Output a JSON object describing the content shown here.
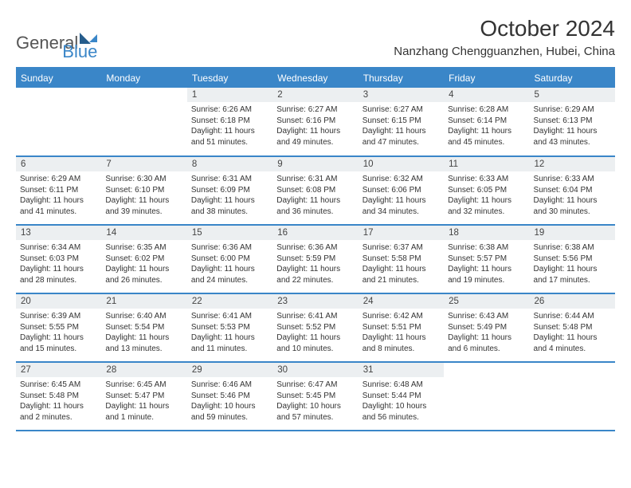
{
  "logo": {
    "part1": "General",
    "part2": "Blue"
  },
  "title": "October 2024",
  "location": "Nanzhang Chengguanzhen, Hubei, China",
  "header_bg": "#3a86c8",
  "header_text_color": "#ffffff",
  "daynum_bg": "#eceff1",
  "rule_color": "#3a86c8",
  "body_font_size": 10,
  "daynames": [
    "Sunday",
    "Monday",
    "Tuesday",
    "Wednesday",
    "Thursday",
    "Friday",
    "Saturday"
  ],
  "weeks": [
    [
      {
        "n": "",
        "sr": "",
        "ss": "",
        "dl": ""
      },
      {
        "n": "",
        "sr": "",
        "ss": "",
        "dl": ""
      },
      {
        "n": "1",
        "sr": "Sunrise: 6:26 AM",
        "ss": "Sunset: 6:18 PM",
        "dl": "Daylight: 11 hours and 51 minutes."
      },
      {
        "n": "2",
        "sr": "Sunrise: 6:27 AM",
        "ss": "Sunset: 6:16 PM",
        "dl": "Daylight: 11 hours and 49 minutes."
      },
      {
        "n": "3",
        "sr": "Sunrise: 6:27 AM",
        "ss": "Sunset: 6:15 PM",
        "dl": "Daylight: 11 hours and 47 minutes."
      },
      {
        "n": "4",
        "sr": "Sunrise: 6:28 AM",
        "ss": "Sunset: 6:14 PM",
        "dl": "Daylight: 11 hours and 45 minutes."
      },
      {
        "n": "5",
        "sr": "Sunrise: 6:29 AM",
        "ss": "Sunset: 6:13 PM",
        "dl": "Daylight: 11 hours and 43 minutes."
      }
    ],
    [
      {
        "n": "6",
        "sr": "Sunrise: 6:29 AM",
        "ss": "Sunset: 6:11 PM",
        "dl": "Daylight: 11 hours and 41 minutes."
      },
      {
        "n": "7",
        "sr": "Sunrise: 6:30 AM",
        "ss": "Sunset: 6:10 PM",
        "dl": "Daylight: 11 hours and 39 minutes."
      },
      {
        "n": "8",
        "sr": "Sunrise: 6:31 AM",
        "ss": "Sunset: 6:09 PM",
        "dl": "Daylight: 11 hours and 38 minutes."
      },
      {
        "n": "9",
        "sr": "Sunrise: 6:31 AM",
        "ss": "Sunset: 6:08 PM",
        "dl": "Daylight: 11 hours and 36 minutes."
      },
      {
        "n": "10",
        "sr": "Sunrise: 6:32 AM",
        "ss": "Sunset: 6:06 PM",
        "dl": "Daylight: 11 hours and 34 minutes."
      },
      {
        "n": "11",
        "sr": "Sunrise: 6:33 AM",
        "ss": "Sunset: 6:05 PM",
        "dl": "Daylight: 11 hours and 32 minutes."
      },
      {
        "n": "12",
        "sr": "Sunrise: 6:33 AM",
        "ss": "Sunset: 6:04 PM",
        "dl": "Daylight: 11 hours and 30 minutes."
      }
    ],
    [
      {
        "n": "13",
        "sr": "Sunrise: 6:34 AM",
        "ss": "Sunset: 6:03 PM",
        "dl": "Daylight: 11 hours and 28 minutes."
      },
      {
        "n": "14",
        "sr": "Sunrise: 6:35 AM",
        "ss": "Sunset: 6:02 PM",
        "dl": "Daylight: 11 hours and 26 minutes."
      },
      {
        "n": "15",
        "sr": "Sunrise: 6:36 AM",
        "ss": "Sunset: 6:00 PM",
        "dl": "Daylight: 11 hours and 24 minutes."
      },
      {
        "n": "16",
        "sr": "Sunrise: 6:36 AM",
        "ss": "Sunset: 5:59 PM",
        "dl": "Daylight: 11 hours and 22 minutes."
      },
      {
        "n": "17",
        "sr": "Sunrise: 6:37 AM",
        "ss": "Sunset: 5:58 PM",
        "dl": "Daylight: 11 hours and 21 minutes."
      },
      {
        "n": "18",
        "sr": "Sunrise: 6:38 AM",
        "ss": "Sunset: 5:57 PM",
        "dl": "Daylight: 11 hours and 19 minutes."
      },
      {
        "n": "19",
        "sr": "Sunrise: 6:38 AM",
        "ss": "Sunset: 5:56 PM",
        "dl": "Daylight: 11 hours and 17 minutes."
      }
    ],
    [
      {
        "n": "20",
        "sr": "Sunrise: 6:39 AM",
        "ss": "Sunset: 5:55 PM",
        "dl": "Daylight: 11 hours and 15 minutes."
      },
      {
        "n": "21",
        "sr": "Sunrise: 6:40 AM",
        "ss": "Sunset: 5:54 PM",
        "dl": "Daylight: 11 hours and 13 minutes."
      },
      {
        "n": "22",
        "sr": "Sunrise: 6:41 AM",
        "ss": "Sunset: 5:53 PM",
        "dl": "Daylight: 11 hours and 11 minutes."
      },
      {
        "n": "23",
        "sr": "Sunrise: 6:41 AM",
        "ss": "Sunset: 5:52 PM",
        "dl": "Daylight: 11 hours and 10 minutes."
      },
      {
        "n": "24",
        "sr": "Sunrise: 6:42 AM",
        "ss": "Sunset: 5:51 PM",
        "dl": "Daylight: 11 hours and 8 minutes."
      },
      {
        "n": "25",
        "sr": "Sunrise: 6:43 AM",
        "ss": "Sunset: 5:49 PM",
        "dl": "Daylight: 11 hours and 6 minutes."
      },
      {
        "n": "26",
        "sr": "Sunrise: 6:44 AM",
        "ss": "Sunset: 5:48 PM",
        "dl": "Daylight: 11 hours and 4 minutes."
      }
    ],
    [
      {
        "n": "27",
        "sr": "Sunrise: 6:45 AM",
        "ss": "Sunset: 5:48 PM",
        "dl": "Daylight: 11 hours and 2 minutes."
      },
      {
        "n": "28",
        "sr": "Sunrise: 6:45 AM",
        "ss": "Sunset: 5:47 PM",
        "dl": "Daylight: 11 hours and 1 minute."
      },
      {
        "n": "29",
        "sr": "Sunrise: 6:46 AM",
        "ss": "Sunset: 5:46 PM",
        "dl": "Daylight: 10 hours and 59 minutes."
      },
      {
        "n": "30",
        "sr": "Sunrise: 6:47 AM",
        "ss": "Sunset: 5:45 PM",
        "dl": "Daylight: 10 hours and 57 minutes."
      },
      {
        "n": "31",
        "sr": "Sunrise: 6:48 AM",
        "ss": "Sunset: 5:44 PM",
        "dl": "Daylight: 10 hours and 56 minutes."
      },
      {
        "n": "",
        "sr": "",
        "ss": "",
        "dl": ""
      },
      {
        "n": "",
        "sr": "",
        "ss": "",
        "dl": ""
      }
    ]
  ]
}
